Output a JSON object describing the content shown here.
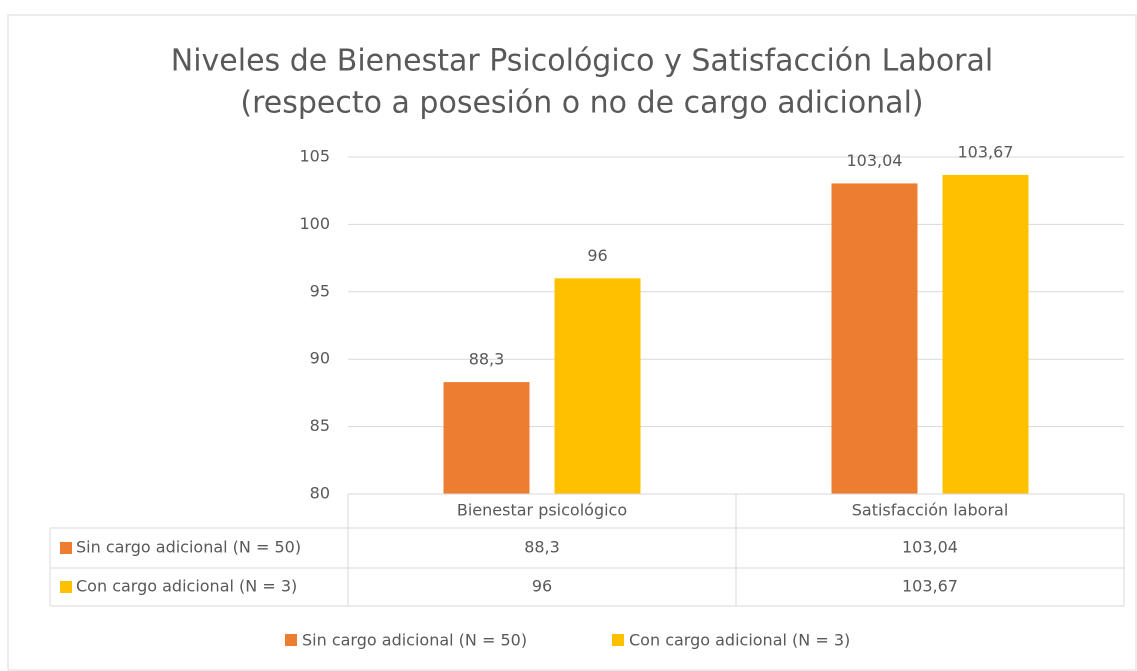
{
  "chart_data": {
    "type": "bar",
    "title": [
      "Niveles de Bienestar Psicológico y Satisfacción Laboral",
      "(respecto a posesión o no de cargo adicional)"
    ],
    "categories": [
      "Bienestar psicológico",
      "Satisfacción laboral"
    ],
    "series": [
      {
        "name": "Sin cargo adicional (N = 50)",
        "color": "#ed7d31",
        "values": [
          88.3,
          103.04
        ],
        "value_labels": [
          "88,3",
          "103,04"
        ]
      },
      {
        "name": "Con cargo adicional (N = 3)",
        "color": "#ffc000",
        "values": [
          96,
          103.67
        ],
        "value_labels": [
          "96",
          "103,67"
        ]
      }
    ],
    "ylim": [
      80,
      105
    ],
    "yticks": [
      80,
      85,
      90,
      95,
      100,
      105
    ],
    "grid": true,
    "legend": "bottom",
    "data_table": true
  }
}
